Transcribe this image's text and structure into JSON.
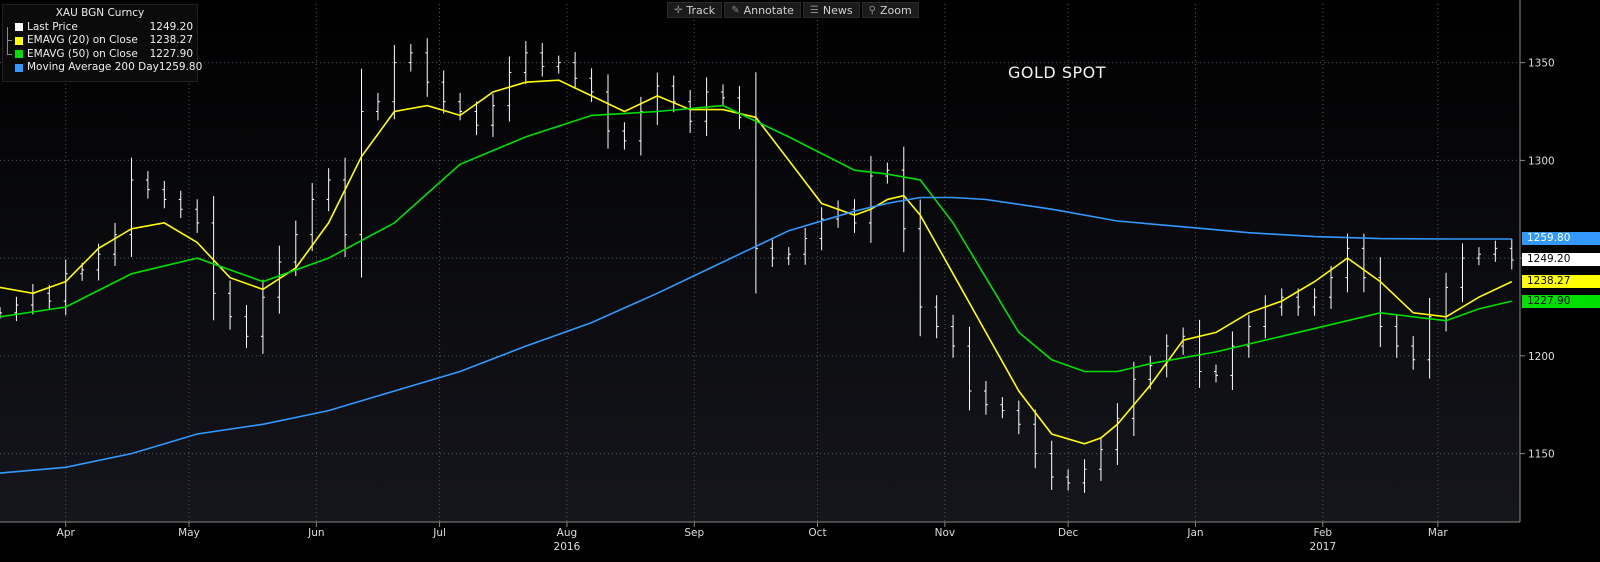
{
  "legend": {
    "security": "XAU BGN Curncy",
    "items": [
      {
        "name": "Last Price",
        "value": "1249.20",
        "color": "#ffffff"
      },
      {
        "name": "EMAVG (20) on Close",
        "value": "1238.27",
        "color": "#ffff00"
      },
      {
        "name": "EMAVG (50) on Close",
        "value": "1227.90",
        "color": "#00e000"
      },
      {
        "name": "Moving Average 200 Day",
        "value": "1259.80",
        "color": "#3399ff"
      }
    ]
  },
  "toolbar": {
    "items": [
      {
        "label": "Track",
        "icon": "crosshair-icon"
      },
      {
        "label": "Annotate",
        "icon": "pencil-icon"
      },
      {
        "label": "News",
        "icon": "news-icon"
      },
      {
        "label": "Zoom",
        "icon": "zoom-icon"
      }
    ]
  },
  "chart_title": "GOLD SPOT",
  "price_tags": [
    {
      "label": "1259.80",
      "value": 1259.8,
      "bg": "#3399ff",
      "fg": "#ffffff"
    },
    {
      "label": "1249.20",
      "value": 1249.2,
      "bg": "#ffffff",
      "fg": "#000000"
    },
    {
      "label": "1238.27",
      "value": 1238.27,
      "bg": "#ffff00",
      "fg": "#000000"
    },
    {
      "label": "1227.90",
      "value": 1227.9,
      "bg": "#00e000",
      "fg": "#000000"
    }
  ],
  "chart_data": {
    "type": "line",
    "title": "GOLD SPOT",
    "ylim": [
      1115,
      1380
    ],
    "y_ticks": [
      1150,
      1200,
      1250,
      1300,
      1350
    ],
    "grid": true,
    "x_month_labels": [
      {
        "label": "Apr",
        "day": 16
      },
      {
        "label": "May",
        "day": 46
      },
      {
        "label": "Jun",
        "day": 77
      },
      {
        "label": "Jul",
        "day": 107
      },
      {
        "label": "Aug",
        "day": 138
      },
      {
        "label": "Sep",
        "day": 169
      },
      {
        "label": "Oct",
        "day": 199
      },
      {
        "label": "Nov",
        "day": 230
      },
      {
        "label": "Dec",
        "day": 260
      },
      {
        "label": "Jan",
        "day": 291
      },
      {
        "label": "Feb",
        "day": 322
      },
      {
        "label": "Mar",
        "day": 350
      }
    ],
    "x_year_labels": [
      {
        "label": "2016",
        "day": 138
      },
      {
        "label": "2017",
        "day": 322
      }
    ],
    "x_range_days": [
      0,
      370
    ],
    "series": [
      {
        "name": "Last Price",
        "color": "#ffffff",
        "style": "ohlc",
        "x": [
          0,
          4,
          8,
          12,
          16,
          20,
          24,
          28,
          32,
          36,
          40,
          44,
          48,
          52,
          56,
          60,
          64,
          68,
          72,
          76,
          80,
          84,
          88,
          92,
          96,
          100,
          104,
          108,
          112,
          116,
          120,
          124,
          128,
          132,
          136,
          140,
          144,
          148,
          152,
          156,
          160,
          164,
          168,
          172,
          176,
          180,
          184,
          188,
          192,
          196,
          200,
          204,
          208,
          212,
          216,
          220,
          224,
          228,
          232,
          236,
          240,
          244,
          248,
          252,
          256,
          260,
          264,
          268,
          272,
          276,
          280,
          284,
          288,
          292,
          296,
          300,
          304,
          308,
          312,
          316,
          320,
          324,
          328,
          332,
          336,
          340,
          344,
          348,
          352,
          356,
          360,
          364,
          368
        ],
        "y": [
          1222,
          1226,
          1232,
          1228,
          1242,
          1244,
          1252,
          1262,
          1290,
          1285,
          1280,
          1275,
          1268,
          1232,
          1220,
          1210,
          1230,
          1248,
          1262,
          1280,
          1290,
          1262,
          1325,
          1330,
          1350,
          1355,
          1340,
          1330,
          1325,
          1318,
          1328,
          1345,
          1355,
          1348,
          1350,
          1342,
          1335,
          1315,
          1310,
          1325,
          1338,
          1330,
          1320,
          1335,
          1332,
          1322,
          1255,
          1250,
          1252,
          1260,
          1270,
          1275,
          1268,
          1292,
          1295,
          1265,
          1225,
          1215,
          1205,
          1182,
          1175,
          1172,
          1165,
          1150,
          1138,
          1135,
          1142,
          1152,
          1168,
          1188,
          1195,
          1205,
          1210,
          1192,
          1190,
          1205,
          1215,
          1225,
          1230,
          1225,
          1230,
          1240,
          1255,
          1240,
          1215,
          1205,
          1198,
          1220,
          1235,
          1250,
          1252,
          1255,
          1249
        ]
      },
      {
        "name": "EMAVG (20) on Close",
        "color": "#ffff00",
        "style": "line",
        "x": [
          0,
          8,
          16,
          24,
          32,
          40,
          48,
          56,
          64,
          72,
          80,
          88,
          96,
          104,
          112,
          120,
          128,
          136,
          144,
          152,
          160,
          168,
          176,
          184,
          192,
          200,
          208,
          212,
          216,
          220,
          224,
          232,
          240,
          248,
          256,
          264,
          268,
          272,
          280,
          288,
          296,
          304,
          312,
          320,
          328,
          336,
          344,
          352,
          360,
          368
        ],
        "y": [
          1235,
          1232,
          1238,
          1255,
          1265,
          1268,
          1258,
          1240,
          1234,
          1245,
          1268,
          1302,
          1325,
          1328,
          1323,
          1335,
          1340,
          1341,
          1333,
          1325,
          1333,
          1326,
          1326,
          1322,
          1300,
          1278,
          1272,
          1275,
          1280,
          1282,
          1272,
          1242,
          1212,
          1182,
          1160,
          1155,
          1158,
          1165,
          1185,
          1208,
          1212,
          1222,
          1228,
          1238,
          1250,
          1238,
          1222,
          1220,
          1230,
          1238
        ]
      },
      {
        "name": "EMAVG (50) on Close",
        "color": "#00e000",
        "style": "line",
        "x": [
          0,
          16,
          32,
          48,
          64,
          80,
          96,
          112,
          128,
          144,
          160,
          176,
          192,
          208,
          216,
          224,
          232,
          240,
          248,
          256,
          264,
          272,
          280,
          296,
          312,
          328,
          336,
          344,
          352,
          360,
          368
        ],
        "y": [
          1220,
          1225,
          1242,
          1250,
          1238,
          1250,
          1268,
          1298,
          1312,
          1323,
          1325,
          1328,
          1312,
          1295,
          1293,
          1290,
          1268,
          1240,
          1212,
          1198,
          1192,
          1192,
          1196,
          1202,
          1210,
          1218,
          1222,
          1220,
          1218,
          1224,
          1228
        ]
      },
      {
        "name": "Moving Average 200 Day",
        "color": "#3399ff",
        "style": "line",
        "x": [
          0,
          16,
          32,
          48,
          64,
          80,
          96,
          112,
          128,
          144,
          160,
          176,
          192,
          208,
          216,
          224,
          232,
          240,
          256,
          272,
          288,
          304,
          320,
          336,
          352,
          368
        ],
        "y": [
          1140,
          1143,
          1150,
          1160,
          1165,
          1172,
          1182,
          1192,
          1205,
          1217,
          1232,
          1248,
          1264,
          1274,
          1278,
          1281,
          1281,
          1280,
          1275,
          1269,
          1266,
          1263,
          1261,
          1260,
          1259.8,
          1259.8
        ]
      }
    ]
  }
}
